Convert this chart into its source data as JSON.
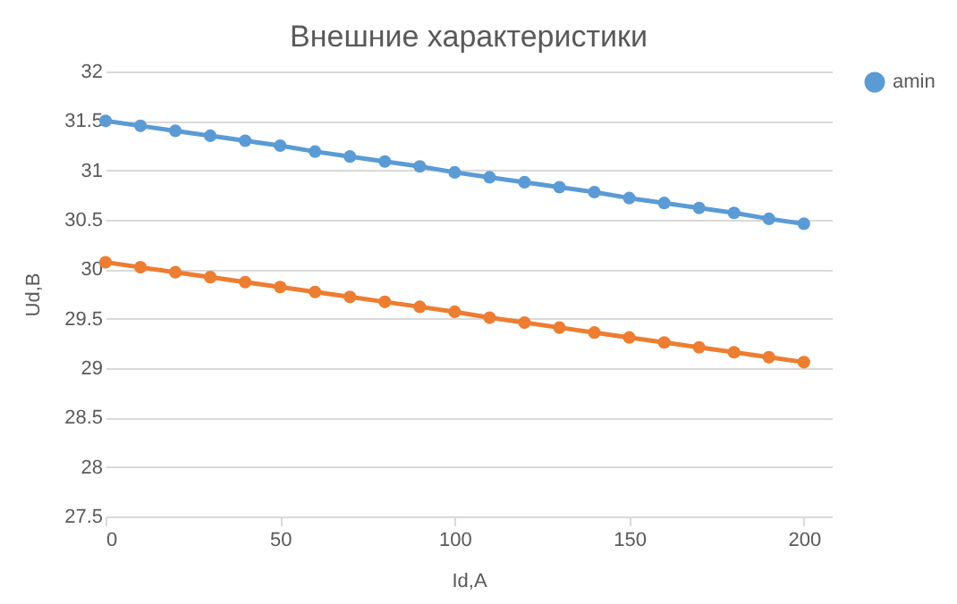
{
  "chart_data": {
    "type": "line",
    "title": "Внешние характеристики",
    "xlabel": "Id,A",
    "ylabel": "Ud,B",
    "x": [
      0,
      10,
      20,
      30,
      40,
      50,
      60,
      70,
      80,
      90,
      100,
      110,
      120,
      130,
      140,
      150,
      160,
      170,
      180,
      190,
      200
    ],
    "series": [
      {
        "name": "amin",
        "color": "#5b9bd5",
        "values": [
          31.5,
          31.45,
          31.4,
          31.35,
          31.3,
          31.25,
          31.19,
          31.14,
          31.09,
          31.04,
          30.98,
          30.93,
          30.88,
          30.83,
          30.78,
          30.72,
          30.67,
          30.62,
          30.57,
          30.51,
          30.46
        ]
      },
      {
        "color": "#ed7d31",
        "values": [
          30.07,
          30.02,
          29.97,
          29.92,
          29.87,
          29.82,
          29.77,
          29.72,
          29.67,
          29.62,
          29.57,
          29.51,
          29.46,
          29.41,
          29.36,
          29.31,
          29.26,
          29.21,
          29.16,
          29.11,
          29.06
        ]
      }
    ],
    "xlim": [
      0,
      208
    ],
    "xticks": [
      0,
      50,
      100,
      150,
      200
    ],
    "ylim": [
      27.5,
      32
    ],
    "yticks": [
      27.5,
      28,
      28.5,
      29,
      29.5,
      30,
      30.5,
      31,
      31.5,
      32
    ],
    "grid": "y",
    "legend": "right",
    "marker": "circle",
    "line_style": "solid"
  }
}
